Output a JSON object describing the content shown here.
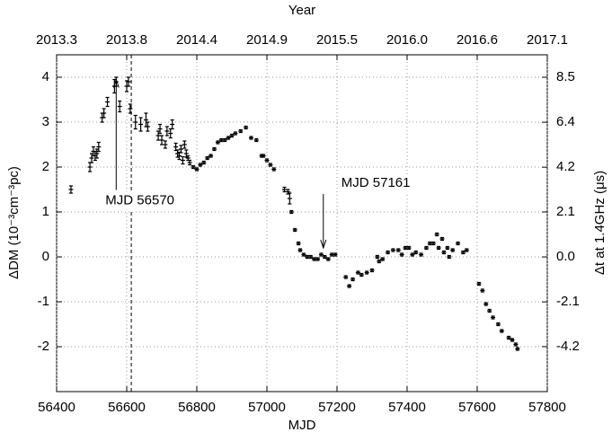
{
  "chart_data": {
    "type": "scatter",
    "xlabel": "MJD",
    "ylabel": "ΔDM (10⁻³cm⁻³pc)",
    "x2label": "Year",
    "y2label": "Δt at 1.4GHz (μs)",
    "xlim": [
      56400,
      57800
    ],
    "xticks": [
      56400,
      56600,
      56800,
      57000,
      57200,
      57400,
      57600,
      57800
    ],
    "x2ticks": [
      {
        "value": 56400,
        "label": "2013.3"
      },
      {
        "value": 56600,
        "label": "2013.8"
      },
      {
        "value": 56800,
        "label": "2014.4"
      },
      {
        "value": 57000,
        "label": "2014.9"
      },
      {
        "value": 57200,
        "label": "2015.5"
      },
      {
        "value": 57400,
        "label": "2016.0"
      },
      {
        "value": 57600,
        "label": "2016.6"
      },
      {
        "value": 57800,
        "label": "2017.1"
      }
    ],
    "ylim": [
      -3,
      4.5
    ],
    "yticks": [
      -2,
      -1,
      0,
      1,
      2,
      3,
      4
    ],
    "y2lim": [
      -6.35,
      9.53
    ],
    "y2ticks": [
      {
        "value": -4.23,
        "label": "-4.2"
      },
      {
        "value": -2.12,
        "label": "-2.1"
      },
      {
        "value": 0,
        "label": "0.0"
      },
      {
        "value": 2.12,
        "label": "2.1"
      },
      {
        "value": 4.23,
        "label": "4.2"
      },
      {
        "value": 6.35,
        "label": "6.4"
      },
      {
        "value": 8.47,
        "label": "8.5"
      }
    ],
    "grid": true,
    "color": "#000000",
    "vlines": [
      56613
    ],
    "annotations": [
      {
        "text": "MJD 56570",
        "x": 56570,
        "y": 3.95
      },
      {
        "text": "MJD 57161",
        "x": 57161,
        "y": 0.2
      }
    ],
    "x": [
      56441,
      56495,
      56500,
      56505,
      56510,
      56515,
      56520,
      56530,
      56535,
      56545,
      56565,
      56570,
      56580,
      56600,
      56605,
      56610,
      56625,
      56640,
      56655,
      56660,
      56690,
      56695,
      56700,
      56710,
      56715,
      56725,
      56730,
      56740,
      56745,
      56750,
      56755,
      56760,
      56765,
      56770,
      56775,
      56780,
      56790,
      56800,
      56810,
      56820,
      56830,
      56840,
      56850,
      56860,
      56870,
      56880,
      56890,
      56900,
      56910,
      56925,
      56940,
      56955,
      56970,
      56985,
      56990,
      57000,
      57010,
      57020,
      57050,
      57060,
      57065,
      57070,
      57080,
      57090,
      57095,
      57105,
      57115,
      57125,
      57135,
      57145,
      57155,
      57165,
      57175,
      57185,
      57195,
      57225,
      57235,
      57245,
      57260,
      57270,
      57285,
      57300,
      57315,
      57320,
      57330,
      57345,
      57360,
      57375,
      57385,
      57395,
      57405,
      57415,
      57425,
      57440,
      57455,
      57465,
      57475,
      57485,
      57490,
      57500,
      57505,
      57515,
      57520,
      57530,
      57545,
      57560,
      57570,
      57605,
      57615,
      57625,
      57635,
      57645,
      57660,
      57670,
      57690,
      57700,
      57710,
      57715
    ],
    "values": [
      1.5,
      2.0,
      2.2,
      2.35,
      2.25,
      2.3,
      2.45,
      3.1,
      3.2,
      3.45,
      3.8,
      3.9,
      3.35,
      3.8,
      3.9,
      3.3,
      3.0,
      2.95,
      3.05,
      2.9,
      2.7,
      2.85,
      2.6,
      2.5,
      2.8,
      2.75,
      2.95,
      2.45,
      2.3,
      2.25,
      2.4,
      2.15,
      2.5,
      2.3,
      2.2,
      2.1,
      2.0,
      1.95,
      2.05,
      2.1,
      2.2,
      2.25,
      2.4,
      2.55,
      2.6,
      2.6,
      2.65,
      2.7,
      2.75,
      2.8,
      2.88,
      2.65,
      2.6,
      2.25,
      2.25,
      2.15,
      2.05,
      1.95,
      1.5,
      1.45,
      1.3,
      1.0,
      0.6,
      0.3,
      0.15,
      0.05,
      0.0,
      0.0,
      -0.05,
      -0.05,
      0.05,
      0.0,
      -0.05,
      0.05,
      0.05,
      -0.45,
      -0.65,
      -0.5,
      -0.35,
      -0.4,
      -0.35,
      -0.3,
      0.0,
      -0.1,
      -0.05,
      0.1,
      0.15,
      0.15,
      0.05,
      0.2,
      0.2,
      0.05,
      0.1,
      0.05,
      0.2,
      0.3,
      0.3,
      0.5,
      0.2,
      0.4,
      0.1,
      0.2,
      0.0,
      0.15,
      0.3,
      0.1,
      0.15,
      -0.6,
      -0.75,
      -1.05,
      -1.2,
      -1.35,
      -1.5,
      -1.65,
      -1.8,
      -1.85,
      -1.95,
      -2.05
    ],
    "errors": [
      0.08,
      0.1,
      0.1,
      0.1,
      0.1,
      0.1,
      0.1,
      0.1,
      0.1,
      0.1,
      0.15,
      0.1,
      0.12,
      0.12,
      0.1,
      0.1,
      0.15,
      0.15,
      0.15,
      0.1,
      0.1,
      0.1,
      0.1,
      0.08,
      0.1,
      0.1,
      0.1,
      0.08,
      0.08,
      0.08,
      0.08,
      0.08,
      0.08,
      0.08,
      0.05,
      0.05,
      0.03,
      0.03,
      0.03,
      0.03,
      0.03,
      0.03,
      0.03,
      0.03,
      0.03,
      0.03,
      0.03,
      0.03,
      0.03,
      0.03,
      0.03,
      0.03,
      0.03,
      0.03,
      0.03,
      0.03,
      0.03,
      0.03,
      0.05,
      0.05,
      0.12,
      0.03,
      0.03,
      0.03,
      0.03,
      0.03,
      0.03,
      0.03,
      0.03,
      0.03,
      0.03,
      0.03,
      0.03,
      0.03,
      0.03,
      0.03,
      0.03,
      0.03,
      0.03,
      0.03,
      0.03,
      0.03,
      0.03,
      0.03,
      0.03,
      0.03,
      0.03,
      0.03,
      0.03,
      0.03,
      0.03,
      0.03,
      0.03,
      0.03,
      0.03,
      0.03,
      0.03,
      0.03,
      0.03,
      0.03,
      0.03,
      0.03,
      0.03,
      0.03,
      0.03,
      0.03,
      0.03,
      0.03,
      0.03,
      0.03,
      0.03,
      0.03,
      0.03,
      0.03,
      0.03,
      0.03,
      0.03,
      0.03
    ]
  }
}
